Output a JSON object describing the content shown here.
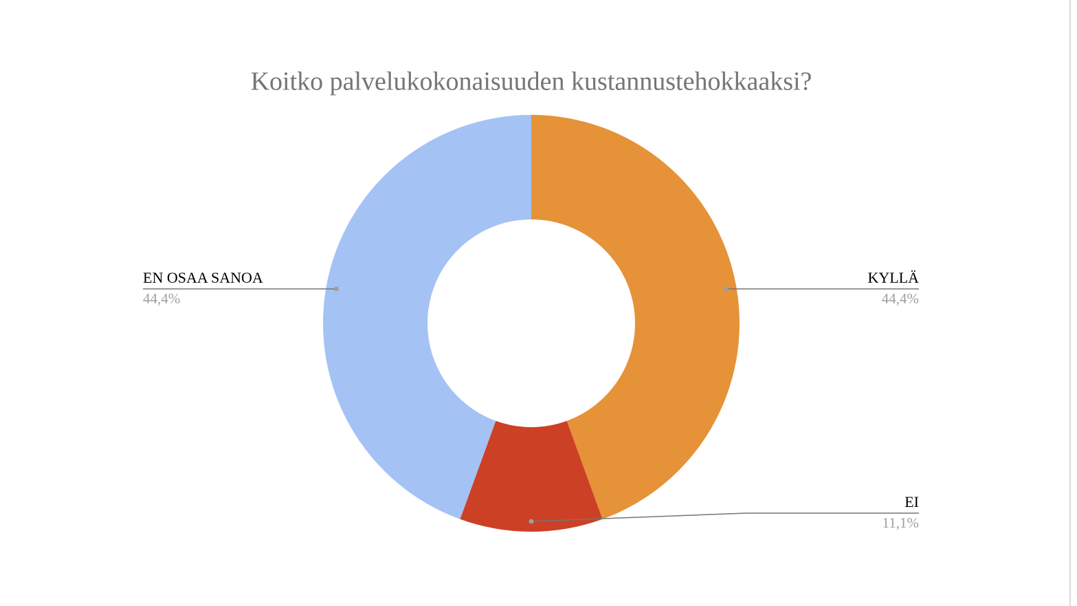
{
  "chart_data": {
    "type": "donut",
    "title": "Koitko palvelukokonaisuuden kustannustehokkaaksi?",
    "categories": [
      "KYLLÄ",
      "EI",
      "EN OSAA SANOA"
    ],
    "values": [
      44.4,
      11.1,
      44.4
    ],
    "value_labels": [
      "44,4%",
      "11,1%",
      "44,4%"
    ],
    "colors": [
      "#e59238",
      "#cc4125",
      "#a4c2f4"
    ]
  }
}
